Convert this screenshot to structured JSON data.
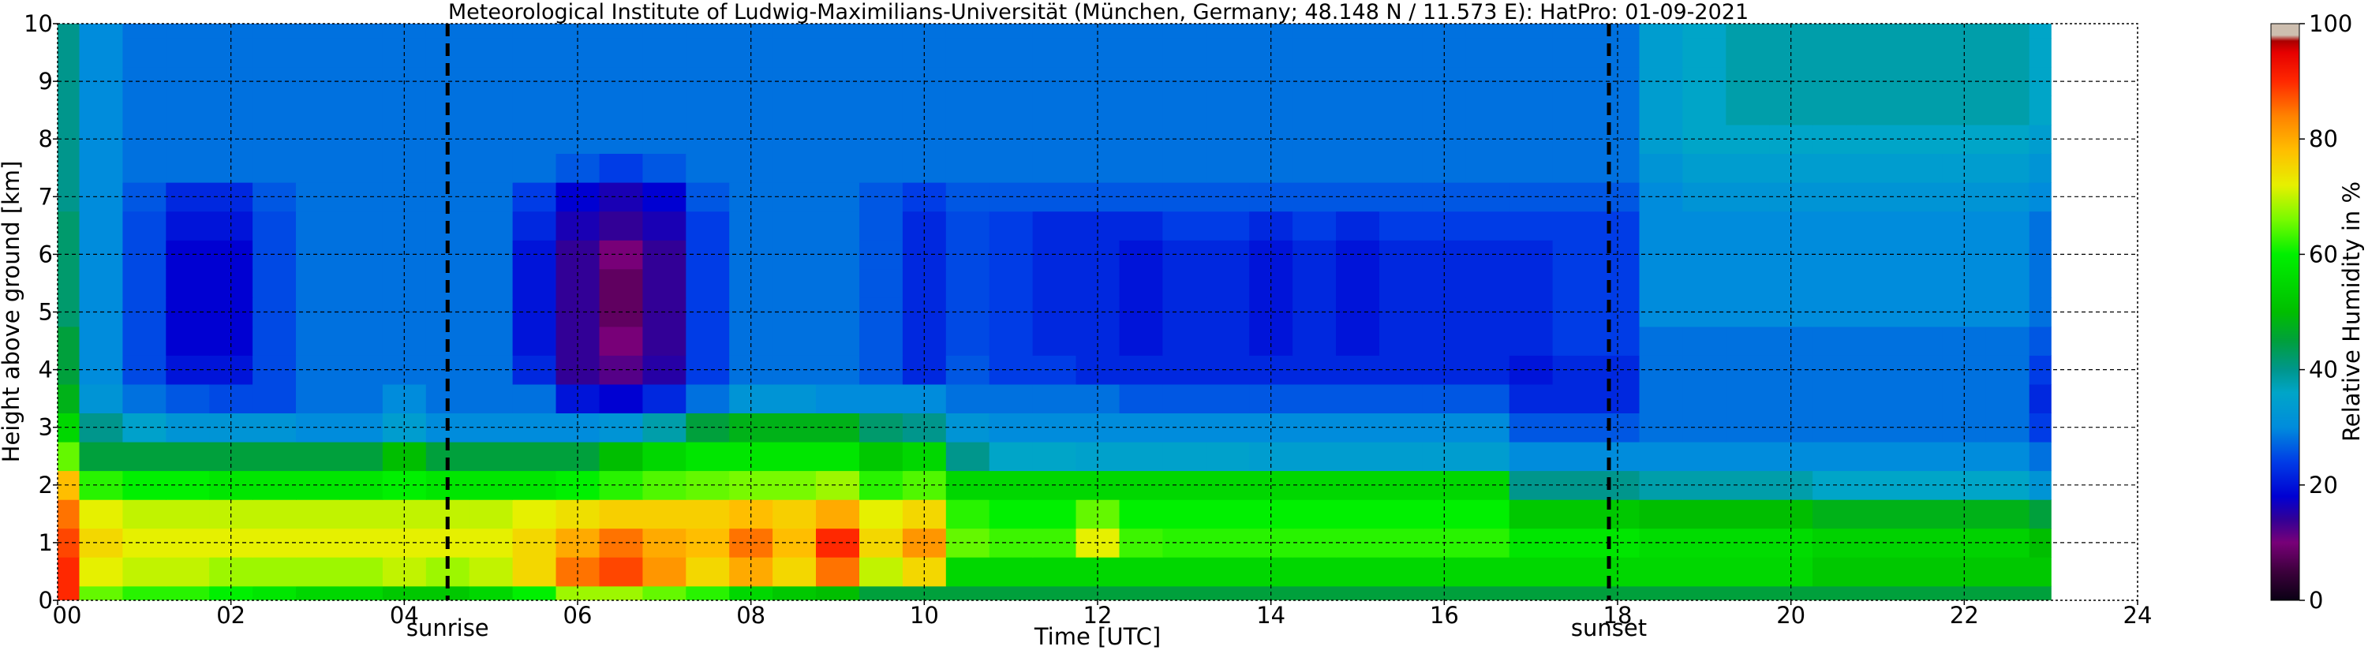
{
  "chart_data": {
    "type": "heatmap",
    "title": "Meteorological Institute of Ludwig-Maximilians-Universität (München, Germany; 48.148 N / 11.573 E):    HatPro: 01-09-2021",
    "xlabel": "Time [UTC]",
    "ylabel": "Height above ground [km]",
    "xlim": [
      0,
      24
    ],
    "ylim": [
      0,
      10
    ],
    "x_ticks": [
      "00",
      "02",
      "04",
      "06",
      "08",
      "10",
      "12",
      "14",
      "16",
      "18",
      "20",
      "22",
      "24"
    ],
    "x_tick_values": [
      0,
      2,
      4,
      6,
      8,
      10,
      12,
      14,
      16,
      18,
      20,
      22,
      24
    ],
    "y_ticks": [
      "0",
      "1",
      "2",
      "3",
      "4",
      "5",
      "6",
      "7",
      "8",
      "9",
      "10"
    ],
    "y_tick_values": [
      0,
      1,
      2,
      3,
      4,
      5,
      6,
      7,
      8,
      9,
      10
    ],
    "grid": true,
    "data_end_time": 23,
    "colorbar": {
      "label": "Relative Humidity in %",
      "range": [
        0,
        100
      ],
      "ticks": [
        "0",
        "20",
        "40",
        "60",
        "80",
        "100"
      ],
      "tick_values": [
        0,
        20,
        40,
        60,
        80,
        100
      ]
    },
    "markers": [
      {
        "label": "sunrise",
        "time": 4.5
      },
      {
        "label": "sunset",
        "time": 17.9
      }
    ],
    "times": [
      0,
      0.5,
      1,
      1.5,
      2,
      2.5,
      3,
      3.5,
      4,
      4.5,
      5,
      5.5,
      6,
      6.5,
      7,
      7.5,
      8,
      8.5,
      9,
      9.5,
      10,
      10.5,
      11,
      11.5,
      12,
      12.5,
      13,
      13.5,
      14,
      14.5,
      15,
      15.5,
      16,
      16.5,
      17,
      17.5,
      18,
      18.5,
      19,
      19.5,
      20,
      20.5,
      21,
      21.5,
      22,
      22.5,
      23
    ],
    "heights": [
      0,
      0.5,
      1,
      1.5,
      2,
      2.5,
      3,
      3.5,
      4,
      4.5,
      5,
      5.5,
      6,
      6.5,
      7,
      7.5,
      8,
      8.5,
      9,
      9.5,
      10
    ],
    "humidity": [
      [
        90,
        65,
        62,
        62,
        60,
        58,
        55,
        55,
        52,
        52,
        55,
        60,
        68,
        68,
        65,
        62,
        55,
        52,
        50,
        45,
        45,
        45,
        45,
        45,
        45,
        45,
        45,
        45,
        45,
        45,
        45,
        45,
        45,
        45,
        45,
        45,
        45,
        45,
        45,
        45,
        45,
        45,
        45,
        45,
        45,
        45,
        45
      ],
      [
        90,
        72,
        70,
        70,
        68,
        68,
        68,
        68,
        70,
        68,
        70,
        75,
        85,
        88,
        82,
        75,
        80,
        75,
        85,
        70,
        75,
        55,
        55,
        55,
        55,
        55,
        55,
        55,
        55,
        55,
        55,
        55,
        55,
        55,
        55,
        55,
        55,
        55,
        55,
        55,
        55,
        52,
        52,
        52,
        52,
        52,
        52
      ],
      [
        88,
        75,
        72,
        72,
        72,
        72,
        72,
        72,
        72,
        72,
        72,
        75,
        80,
        85,
        80,
        78,
        85,
        78,
        90,
        75,
        82,
        65,
        63,
        63,
        72,
        63,
        62,
        62,
        62,
        62,
        62,
        62,
        62,
        62,
        58,
        58,
        58,
        56,
        56,
        56,
        56,
        54,
        54,
        54,
        54,
        54,
        50
      ],
      [
        85,
        72,
        70,
        70,
        70,
        70,
        70,
        70,
        70,
        70,
        70,
        72,
        74,
        76,
        76,
        76,
        78,
        76,
        80,
        72,
        75,
        62,
        60,
        60,
        65,
        60,
        60,
        60,
        60,
        60,
        60,
        60,
        60,
        60,
        52,
        52,
        52,
        50,
        50,
        50,
        50,
        48,
        48,
        48,
        48,
        48,
        45
      ],
      [
        78,
        62,
        60,
        60,
        58,
        58,
        58,
        58,
        60,
        58,
        58,
        58,
        60,
        62,
        64,
        65,
        66,
        66,
        68,
        62,
        64,
        55,
        55,
        55,
        55,
        55,
        55,
        55,
        55,
        55,
        55,
        55,
        55,
        55,
        40,
        40,
        40,
        38,
        38,
        38,
        38,
        36,
        36,
        36,
        36,
        36,
        32
      ],
      [
        65,
        45,
        45,
        45,
        45,
        45,
        45,
        45,
        50,
        45,
        45,
        45,
        45,
        50,
        55,
        58,
        58,
        58,
        58,
        52,
        55,
        40,
        36,
        36,
        35,
        35,
        35,
        35,
        34,
        34,
        34,
        34,
        34,
        34,
        30,
        30,
        30,
        30,
        30,
        30,
        30,
        30,
        30,
        30,
        30,
        30,
        28
      ],
      [
        55,
        40,
        35,
        32,
        32,
        32,
        30,
        30,
        34,
        30,
        30,
        30,
        30,
        32,
        38,
        45,
        48,
        48,
        48,
        42,
        40,
        32,
        30,
        30,
        30,
        30,
        30,
        30,
        30,
        30,
        30,
        30,
        30,
        30,
        26,
        26,
        26,
        28,
        28,
        28,
        28,
        28,
        28,
        28,
        28,
        28,
        24
      ],
      [
        48,
        32,
        28,
        26,
        25,
        25,
        28,
        28,
        30,
        28,
        28,
        28,
        20,
        18,
        22,
        28,
        32,
        32,
        30,
        30,
        30,
        28,
        28,
        28,
        28,
        26,
        26,
        26,
        26,
        26,
        26,
        26,
        26,
        26,
        22,
        22,
        22,
        28,
        28,
        28,
        28,
        28,
        28,
        28,
        28,
        28,
        22
      ],
      [
        45,
        30,
        25,
        20,
        20,
        25,
        28,
        28,
        28,
        28,
        28,
        22,
        14,
        12,
        15,
        24,
        28,
        28,
        28,
        26,
        22,
        26,
        24,
        24,
        22,
        22,
        22,
        22,
        22,
        22,
        22,
        22,
        22,
        22,
        20,
        22,
        22,
        28,
        28,
        28,
        28,
        28,
        28,
        28,
        28,
        28,
        24
      ],
      [
        45,
        30,
        25,
        18,
        18,
        25,
        28,
        28,
        28,
        28,
        28,
        20,
        14,
        10,
        14,
        24,
        28,
        28,
        28,
        26,
        22,
        25,
        24,
        22,
        22,
        20,
        22,
        22,
        20,
        22,
        20,
        22,
        22,
        22,
        22,
        24,
        24,
        28,
        28,
        28,
        28,
        28,
        28,
        28,
        28,
        28,
        26
      ],
      [
        42,
        30,
        25,
        18,
        18,
        25,
        28,
        28,
        28,
        28,
        28,
        20,
        14,
        8,
        14,
        24,
        28,
        28,
        28,
        26,
        22,
        25,
        24,
        22,
        22,
        20,
        22,
        22,
        20,
        22,
        20,
        22,
        22,
        22,
        22,
        24,
        24,
        30,
        30,
        30,
        30,
        30,
        30,
        30,
        30,
        30,
        28
      ],
      [
        42,
        30,
        25,
        18,
        18,
        25,
        28,
        28,
        28,
        28,
        28,
        20,
        14,
        8,
        14,
        24,
        28,
        28,
        28,
        26,
        22,
        25,
        24,
        22,
        22,
        20,
        22,
        22,
        20,
        22,
        20,
        22,
        22,
        22,
        22,
        24,
        24,
        30,
        30,
        30,
        30,
        30,
        30,
        30,
        30,
        30,
        28
      ],
      [
        42,
        30,
        25,
        18,
        18,
        25,
        28,
        28,
        28,
        28,
        28,
        20,
        14,
        10,
        14,
        24,
        28,
        28,
        28,
        26,
        22,
        25,
        24,
        22,
        22,
        20,
        22,
        22,
        20,
        22,
        20,
        22,
        22,
        22,
        22,
        24,
        24,
        30,
        30,
        30,
        30,
        30,
        30,
        30,
        30,
        30,
        28
      ],
      [
        42,
        30,
        25,
        20,
        20,
        25,
        28,
        28,
        28,
        28,
        28,
        22,
        16,
        14,
        16,
        24,
        28,
        28,
        28,
        26,
        22,
        25,
        24,
        22,
        22,
        22,
        24,
        24,
        22,
        24,
        22,
        24,
        24,
        24,
        24,
        24,
        24,
        30,
        30,
        30,
        30,
        30,
        30,
        30,
        30,
        30,
        28
      ],
      [
        40,
        30,
        26,
        22,
        22,
        26,
        28,
        28,
        28,
        28,
        28,
        24,
        18,
        16,
        18,
        26,
        28,
        28,
        28,
        26,
        24,
        26,
        26,
        26,
        26,
        26,
        26,
        26,
        26,
        26,
        26,
        26,
        26,
        26,
        26,
        26,
        26,
        30,
        32,
        32,
        32,
        32,
        32,
        32,
        32,
        32,
        30
      ],
      [
        40,
        30,
        28,
        28,
        28,
        28,
        28,
        28,
        28,
        28,
        28,
        28,
        26,
        24,
        26,
        28,
        28,
        28,
        28,
        28,
        28,
        28,
        28,
        28,
        28,
        28,
        28,
        28,
        28,
        28,
        28,
        28,
        28,
        28,
        28,
        28,
        28,
        32,
        34,
        34,
        34,
        34,
        34,
        34,
        34,
        34,
        32
      ],
      [
        40,
        30,
        28,
        28,
        28,
        28,
        28,
        28,
        28,
        28,
        28,
        28,
        28,
        28,
        28,
        28,
        28,
        28,
        28,
        28,
        28,
        28,
        28,
        28,
        28,
        28,
        28,
        28,
        28,
        28,
        28,
        28,
        28,
        28,
        28,
        28,
        28,
        34,
        36,
        36,
        36,
        36,
        36,
        36,
        36,
        36,
        34
      ],
      [
        40,
        30,
        28,
        28,
        28,
        28,
        28,
        28,
        28,
        28,
        28,
        28,
        28,
        28,
        28,
        28,
        28,
        28,
        28,
        28,
        28,
        28,
        28,
        28,
        28,
        28,
        28,
        28,
        28,
        28,
        28,
        28,
        28,
        28,
        28,
        28,
        28,
        34,
        36,
        38,
        38,
        38,
        38,
        38,
        38,
        38,
        36
      ],
      [
        40,
        30,
        28,
        28,
        28,
        28,
        28,
        28,
        28,
        28,
        28,
        28,
        28,
        28,
        28,
        28,
        28,
        28,
        28,
        28,
        28,
        28,
        28,
        28,
        28,
        28,
        28,
        28,
        28,
        28,
        28,
        28,
        28,
        28,
        28,
        28,
        28,
        34,
        36,
        38,
        38,
        38,
        38,
        38,
        38,
        38,
        36
      ],
      [
        40,
        30,
        28,
        28,
        28,
        28,
        28,
        28,
        28,
        28,
        28,
        28,
        28,
        28,
        28,
        28,
        28,
        28,
        28,
        28,
        28,
        28,
        28,
        28,
        28,
        28,
        28,
        28,
        28,
        28,
        28,
        28,
        28,
        28,
        28,
        28,
        28,
        34,
        36,
        38,
        38,
        38,
        38,
        38,
        38,
        38,
        36
      ],
      [
        40,
        30,
        28,
        28,
        28,
        28,
        28,
        28,
        28,
        28,
        28,
        28,
        28,
        28,
        28,
        28,
        28,
        28,
        28,
        28,
        28,
        28,
        28,
        28,
        28,
        28,
        28,
        28,
        28,
        28,
        28,
        28,
        28,
        28,
        28,
        28,
        28,
        34,
        36,
        38,
        38,
        38,
        38,
        38,
        38,
        38,
        36
      ]
    ]
  }
}
